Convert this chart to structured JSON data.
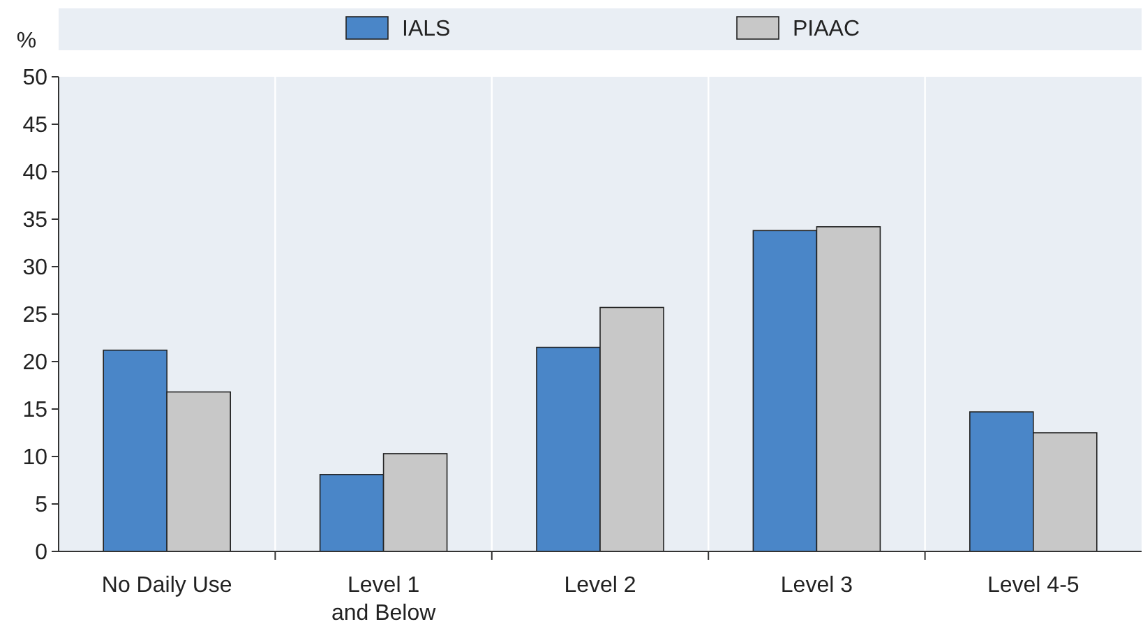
{
  "chart_data": {
    "type": "bar",
    "ylabel": "%",
    "categories": [
      "No Daily Use",
      "Level 1\nand Below",
      "Level 2",
      "Level 3",
      "Level 4-5"
    ],
    "series": [
      {
        "name": "IALS",
        "color": "#4a86c8",
        "values": [
          21.2,
          8.1,
          21.5,
          33.8,
          14.7
        ]
      },
      {
        "name": "PIAAC",
        "color": "#c8c8c8",
        "values": [
          16.8,
          10.3,
          25.7,
          34.2,
          12.5
        ]
      }
    ],
    "ylim": [
      0,
      50
    ],
    "yticks": [
      0,
      5,
      10,
      15,
      20,
      25,
      30,
      35,
      40,
      45,
      50
    ],
    "grid": false,
    "legend": "top"
  }
}
